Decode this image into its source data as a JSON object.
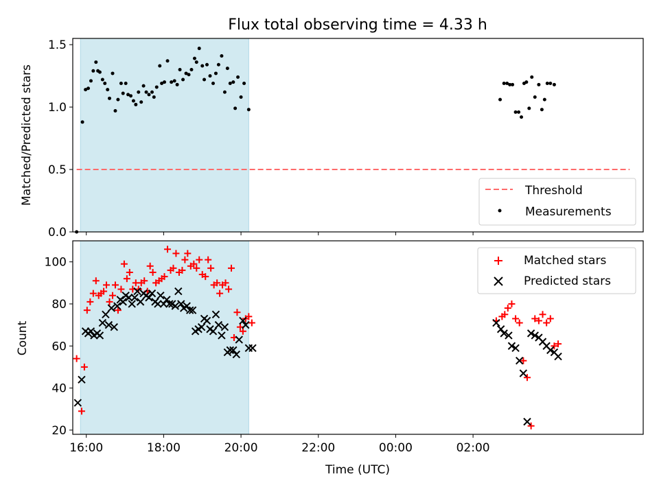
{
  "chart_data": [
    {
      "type": "scatter",
      "title": "Flux total observing time = 4.33 h",
      "xlabel": "",
      "ylabel": "Matched/Predicted stars",
      "xlim": [
        -0.35,
        14.4
      ],
      "ylim": [
        0.0,
        1.55
      ],
      "y_ticks": [
        0.0,
        0.5,
        1.0,
        1.5
      ],
      "y_tick_labels": [
        "0.0",
        "0.5",
        "1.0",
        "1.5"
      ],
      "shaded_region": {
        "x": [
          -0.15,
          4.2
        ],
        "color": "#add8e6"
      },
      "legend": {
        "position": "lower right",
        "entries": [
          "Threshold",
          "Measurements"
        ]
      },
      "series": [
        {
          "name": "Threshold",
          "style": "dashed-line",
          "color": "#ff6a6a",
          "x": [
            -0.25,
            14.05
          ],
          "y": [
            0.5,
            0.5
          ]
        },
        {
          "name": "Measurements",
          "style": "dot",
          "color": "#000000",
          "x": [
            -0.25,
            -0.1,
            -0.02,
            0.05,
            0.12,
            0.18,
            0.25,
            0.3,
            0.35,
            0.42,
            0.48,
            0.55,
            0.6,
            0.68,
            0.75,
            0.82,
            0.9,
            0.95,
            1.02,
            1.08,
            1.15,
            1.22,
            1.28,
            1.35,
            1.42,
            1.48,
            1.55,
            1.62,
            1.7,
            1.75,
            1.82,
            1.9,
            1.95,
            2.02,
            2.1,
            2.2,
            2.28,
            2.35,
            2.42,
            2.5,
            2.58,
            2.65,
            2.72,
            2.8,
            2.85,
            2.92,
            3.0,
            3.05,
            3.12,
            3.2,
            3.28,
            3.35,
            3.42,
            3.5,
            3.58,
            3.65,
            3.72,
            3.8,
            3.85,
            3.92,
            4.0,
            4.08,
            4.2,
            10.7,
            10.8,
            10.88,
            10.95,
            11.02,
            11.1,
            11.18,
            11.25,
            11.32,
            11.38,
            11.45,
            11.52,
            11.6,
            11.7,
            11.78,
            11.85,
            11.92,
            12.0,
            12.1
          ],
          "y": [
            0.0,
            0.88,
            1.14,
            1.15,
            1.21,
            1.29,
            1.36,
            1.29,
            1.28,
            1.22,
            1.19,
            1.14,
            1.07,
            1.27,
            0.97,
            1.06,
            1.19,
            1.11,
            1.19,
            1.1,
            1.09,
            1.05,
            1.02,
            1.12,
            1.04,
            1.17,
            1.12,
            1.1,
            1.12,
            1.08,
            1.16,
            1.33,
            1.19,
            1.2,
            1.37,
            1.2,
            1.21,
            1.18,
            1.3,
            1.22,
            1.27,
            1.26,
            1.3,
            1.39,
            1.36,
            1.47,
            1.33,
            1.22,
            1.34,
            1.25,
            1.19,
            1.27,
            1.34,
            1.41,
            1.12,
            1.31,
            1.19,
            1.2,
            0.99,
            1.24,
            1.08,
            1.19,
            0.98,
            1.06,
            1.19,
            1.19,
            1.18,
            1.18,
            0.96,
            0.96,
            0.92,
            1.19,
            1.2,
            0.99,
            1.24,
            1.08,
            1.18,
            0.98,
            1.06,
            1.19,
            1.19,
            1.18
          ]
        }
      ]
    },
    {
      "type": "scatter",
      "title": "",
      "xlabel": "Time (UTC)",
      "ylabel": "Count",
      "xlim": [
        -0.35,
        14.4
      ],
      "ylim": [
        18,
        110
      ],
      "x_ticks": [
        0,
        2,
        4,
        6,
        8,
        10
      ],
      "x_tick_labels": [
        "16:00",
        "18:00",
        "20:00",
        "22:00",
        "00:00",
        "02:00"
      ],
      "y_ticks": [
        20,
        40,
        60,
        80,
        100
      ],
      "y_tick_labels": [
        "20",
        "40",
        "60",
        "80",
        "100"
      ],
      "shaded_region": {
        "x": [
          -0.15,
          4.2
        ],
        "color": "#add8e6"
      },
      "legend": {
        "position": "upper right",
        "entries": [
          "Matched stars",
          "Predicted stars"
        ]
      },
      "series": [
        {
          "name": "Matched stars",
          "style": "plus",
          "color": "#ff0000",
          "x": [
            -0.25,
            -0.12,
            -0.05,
            0.02,
            0.1,
            0.18,
            0.25,
            0.32,
            0.38,
            0.45,
            0.52,
            0.6,
            0.68,
            0.75,
            0.82,
            0.9,
            0.98,
            1.05,
            1.12,
            1.2,
            1.28,
            1.35,
            1.42,
            1.5,
            1.58,
            1.65,
            1.72,
            1.8,
            1.88,
            1.95,
            2.02,
            2.1,
            2.18,
            2.25,
            2.32,
            2.4,
            2.48,
            2.55,
            2.62,
            2.7,
            2.78,
            2.85,
            2.92,
            3.0,
            3.08,
            3.15,
            3.22,
            3.3,
            3.38,
            3.45,
            3.52,
            3.6,
            3.68,
            3.75,
            3.82,
            3.9,
            3.98,
            4.05,
            4.12,
            4.2,
            4.28,
            10.6,
            10.75,
            10.82,
            10.9,
            11.0,
            11.1,
            11.2,
            11.3,
            11.4,
            11.5,
            11.6,
            11.7,
            11.8,
            11.9,
            12.0,
            12.1,
            12.2
          ],
          "y": [
            54,
            29,
            50,
            77,
            81,
            85,
            91,
            84,
            85,
            86,
            89,
            81,
            84,
            89,
            77,
            87,
            99,
            92,
            95,
            87,
            90,
            87,
            90,
            91,
            86,
            98,
            95,
            90,
            91,
            92,
            93,
            106,
            96,
            97,
            104,
            95,
            96,
            101,
            104,
            98,
            99,
            97,
            101,
            94,
            93,
            101,
            97,
            89,
            90,
            85,
            89,
            90,
            87,
            97,
            64,
            76,
            69,
            67,
            73,
            74,
            71,
            72,
            74,
            75,
            78,
            80,
            73,
            71,
            53,
            45,
            22,
            73,
            72,
            75,
            71,
            73,
            60,
            61
          ]
        },
        {
          "name": "Predicted stars",
          "style": "x",
          "color": "#000000",
          "x": [
            -0.22,
            -0.12,
            -0.02,
            0.05,
            0.12,
            0.2,
            0.28,
            0.35,
            0.42,
            0.5,
            0.58,
            0.65,
            0.72,
            0.8,
            0.88,
            0.95,
            1.02,
            1.1,
            1.18,
            1.25,
            1.32,
            1.4,
            1.48,
            1.55,
            1.62,
            1.7,
            1.78,
            1.85,
            1.92,
            2.0,
            2.08,
            2.15,
            2.22,
            2.3,
            2.38,
            2.45,
            2.52,
            2.6,
            2.68,
            2.75,
            2.82,
            2.9,
            2.98,
            3.05,
            3.12,
            3.2,
            3.28,
            3.35,
            3.42,
            3.5,
            3.58,
            3.65,
            3.72,
            3.8,
            3.88,
            3.95,
            4.05,
            4.12,
            4.2,
            4.3,
            10.6,
            10.72,
            10.8,
            10.92,
            11.0,
            11.1,
            11.2,
            11.3,
            11.4,
            11.5,
            11.6,
            11.7,
            11.8,
            11.9,
            12.0,
            12.1,
            12.2
          ],
          "y": [
            33,
            44,
            67,
            66,
            67,
            65,
            66,
            65,
            71,
            75,
            70,
            78,
            69,
            79,
            82,
            81,
            84,
            83,
            80,
            83,
            86,
            81,
            85,
            84,
            83,
            85,
            81,
            80,
            84,
            80,
            82,
            80,
            80,
            79,
            86,
            80,
            78,
            79,
            77,
            77,
            67,
            68,
            69,
            73,
            72,
            68,
            67,
            75,
            70,
            65,
            69,
            57,
            58,
            58,
            56,
            63,
            72,
            70,
            59,
            59,
            71,
            68,
            66,
            65,
            60,
            59,
            53,
            47,
            24,
            66,
            65,
            64,
            62,
            60,
            58,
            57,
            55
          ]
        }
      ]
    }
  ]
}
